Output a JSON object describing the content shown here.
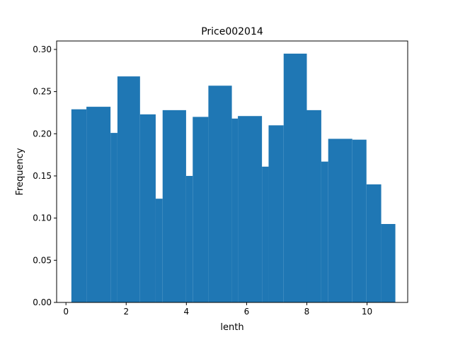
{
  "chart_data": {
    "type": "bar",
    "title": "Price002014",
    "xlabel": "lenth",
    "ylabel": "Frequency",
    "xlim": [
      -0.31,
      11.35
    ],
    "ylim": [
      0,
      0.31
    ],
    "x_ticks": [
      0,
      2,
      4,
      6,
      8,
      10
    ],
    "y_ticks": [
      0.0,
      0.05,
      0.1,
      0.15,
      0.2,
      0.25,
      0.3
    ],
    "x_tick_labels": [
      "0",
      "2",
      "4",
      "6",
      "8",
      "10"
    ],
    "y_tick_labels": [
      "0.00",
      "0.05",
      "0.10",
      "0.15",
      "0.20",
      "0.25",
      "0.30"
    ],
    "grid": false,
    "bar_color": "#1f77b4",
    "bins": [
      {
        "x0": 0.18,
        "x1": 0.68,
        "value": 0.229
      },
      {
        "x0": 0.68,
        "x1": 1.48,
        "value": 0.232
      },
      {
        "x0": 1.48,
        "x1": 1.71,
        "value": 0.201
      },
      {
        "x0": 1.71,
        "x1": 2.46,
        "value": 0.268
      },
      {
        "x0": 2.46,
        "x1": 2.98,
        "value": 0.223
      },
      {
        "x0": 2.98,
        "x1": 3.21,
        "value": 0.123
      },
      {
        "x0": 3.21,
        "x1": 3.99,
        "value": 0.228
      },
      {
        "x0": 3.99,
        "x1": 4.21,
        "value": 0.15
      },
      {
        "x0": 4.21,
        "x1": 4.73,
        "value": 0.22
      },
      {
        "x0": 4.73,
        "x1": 5.51,
        "value": 0.257
      },
      {
        "x0": 5.51,
        "x1": 5.71,
        "value": 0.218
      },
      {
        "x0": 5.71,
        "x1": 6.51,
        "value": 0.221
      },
      {
        "x0": 6.51,
        "x1": 6.73,
        "value": 0.161
      },
      {
        "x0": 6.73,
        "x1": 7.23,
        "value": 0.21
      },
      {
        "x0": 7.23,
        "x1": 8.0,
        "value": 0.295
      },
      {
        "x0": 8.0,
        "x1": 8.48,
        "value": 0.228
      },
      {
        "x0": 8.48,
        "x1": 8.71,
        "value": 0.167
      },
      {
        "x0": 8.71,
        "x1": 9.51,
        "value": 0.194
      },
      {
        "x0": 9.51,
        "x1": 9.98,
        "value": 0.193
      },
      {
        "x0": 9.98,
        "x1": 10.47,
        "value": 0.14
      },
      {
        "x0": 10.47,
        "x1": 10.94,
        "value": 0.093
      }
    ]
  }
}
